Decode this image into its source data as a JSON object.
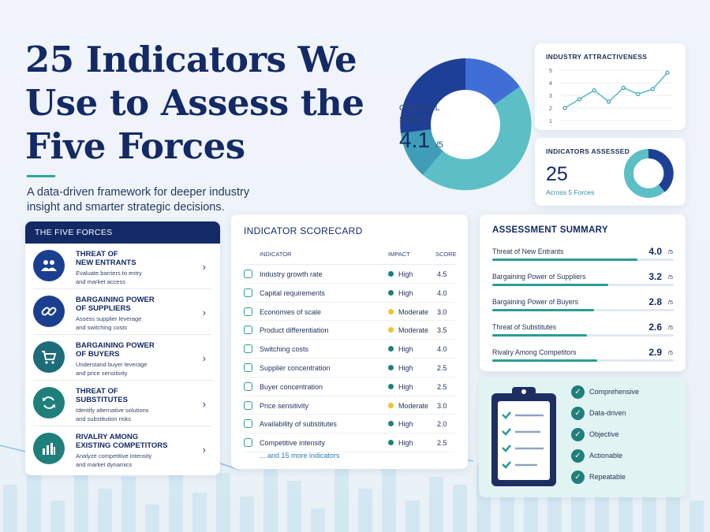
{
  "hero": {
    "title": "25 Indicators We Use to Assess the Five Forces",
    "subtitle": "A data-driven framework for deeper industry insight and smarter strategic decisions."
  },
  "overall": {
    "label_line1": "OVERALL",
    "label_line2": "SCORE",
    "score": "4.1",
    "denominator": "/5"
  },
  "industry_attractiveness": {
    "title": "INDUSTRY ATTRACTIVENESS",
    "chart_data": {
      "type": "line",
      "x": [
        1,
        2,
        3,
        4,
        5,
        6,
        7,
        8
      ],
      "values": [
        2.0,
        2.7,
        3.4,
        2.5,
        3.6,
        3.1,
        3.5,
        4.8
      ],
      "yticks": [
        "5",
        "4",
        "3",
        "2",
        "1"
      ],
      "ylim": [
        1,
        5
      ]
    }
  },
  "indicators_assessed": {
    "title": "INDICATORS ASSESSED",
    "count": "25",
    "sub": "Across 5 Forces"
  },
  "five_forces": {
    "heading": "THE FIVE FORCES",
    "items": [
      {
        "title1": "THREAT OF",
        "title2": "NEW ENTRANTS",
        "desc1": "Evaluate barriers to entry",
        "desc2": "and market access",
        "icon": "users-icon",
        "color": "#1b3f8f"
      },
      {
        "title1": "BARGAINING POWER",
        "title2": "OF SUPPLIERS",
        "desc1": "Assess supplier leverage",
        "desc2": "and switching costs",
        "icon": "link-icon",
        "color": "#1b3f8f"
      },
      {
        "title1": "BARGAINING POWER",
        "title2": "OF BUYERS",
        "desc1": "Understand buyer leverage",
        "desc2": "and price sensitivity",
        "icon": "cart-icon",
        "color": "#1d6c7a"
      },
      {
        "title1": "THREAT OF",
        "title2": "SUBSTITUTES",
        "desc1": "Identify alternative solutions",
        "desc2": "and substitution risks",
        "icon": "refresh-icon",
        "color": "#1f7f7b"
      },
      {
        "title1": "RIVALRY AMONG",
        "title2": "EXISTING COMPETITORS",
        "desc1": "Analyze competitive intensity",
        "desc2": "and market dynamics",
        "icon": "bars-icon",
        "color": "#1f7f7b"
      }
    ],
    "chevron": "›"
  },
  "scorecard": {
    "title": "INDICATOR SCORECARD",
    "col_indicator": "INDICATOR",
    "col_impact": "IMPACT",
    "col_score": "SCORE",
    "rows": [
      {
        "name": "Industry growth rate",
        "impact": "High",
        "score": "4.5",
        "color": "#1f7f7b"
      },
      {
        "name": "Capital requirements",
        "impact": "High",
        "score": "4.0",
        "color": "#1f7f7b"
      },
      {
        "name": "Economies of scale",
        "impact": "Moderate",
        "score": "3.0",
        "color": "#f2c230"
      },
      {
        "name": "Product differentiation",
        "impact": "Moderate",
        "score": "3.5",
        "color": "#f2c230"
      },
      {
        "name": "Switching costs",
        "impact": "High",
        "score": "4.0",
        "color": "#1f7f7b"
      },
      {
        "name": "Supplier concentration",
        "impact": "High",
        "score": "2.5",
        "color": "#1f7f7b"
      },
      {
        "name": "Buyer concentration",
        "impact": "High",
        "score": "2.5",
        "color": "#1f7f7b"
      },
      {
        "name": "Price sensitivity",
        "impact": "Moderate",
        "score": "3.0",
        "color": "#f2c230"
      },
      {
        "name": "Availability of substitutes",
        "impact": "High",
        "score": "2.0",
        "color": "#1f7f7b"
      },
      {
        "name": "Competitive intensity",
        "impact": "High",
        "score": "2.5",
        "color": "#1f7f7b"
      }
    ],
    "more": "... and 15 more indicators"
  },
  "summary": {
    "title": "ASSESSMENT SUMMARY",
    "denominator": "/5",
    "rows": [
      {
        "name": "Threat of New Entrants",
        "value": "4.0",
        "fraction": 0.8
      },
      {
        "name": "Bargaining Power of Suppliers",
        "value": "3.2",
        "fraction": 0.64
      },
      {
        "name": "Bargaining Power of Buyers",
        "value": "2.8",
        "fraction": 0.56
      },
      {
        "name": "Threat of Substitutes",
        "value": "2.6",
        "fraction": 0.52
      },
      {
        "name": "Rivalry Among Competitors",
        "value": "2.9",
        "fraction": 0.58
      }
    ]
  },
  "checklist": {
    "items": [
      "Comprehensive",
      "Data-driven",
      "Objective",
      "Actionable",
      "Repeatable"
    ]
  },
  "colors": {
    "navy": "#142a66",
    "teal": "#2a9d96",
    "blue": "#2e7db2"
  }
}
